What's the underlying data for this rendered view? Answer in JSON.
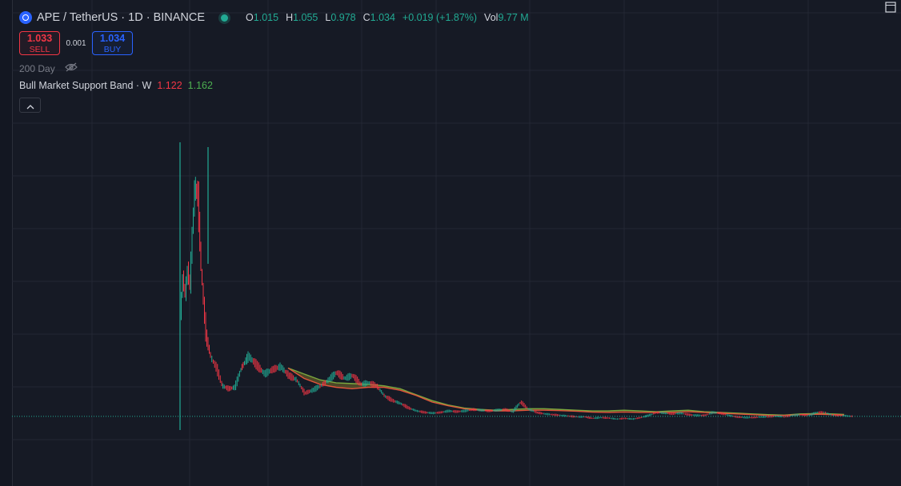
{
  "header": {
    "title": "APE / TetherUS · 1D · BINANCE",
    "ohlc": [
      {
        "key": "O",
        "value": "1.015"
      },
      {
        "key": "H",
        "value": "1.055"
      },
      {
        "key": "L",
        "value": "0.978"
      },
      {
        "key": "C",
        "value": "1.034"
      },
      {
        "key": "",
        "value": "+0.019 (+1.87%)"
      },
      {
        "key": "Vol",
        "value": "9.77 M"
      }
    ]
  },
  "trade": {
    "sell_price": "1.033",
    "sell_label": "SELL",
    "spread": "0.001",
    "buy_price": "1.034",
    "buy_label": "BUY"
  },
  "indicators": {
    "ma_label": "200 Day",
    "band_name": "Bull Market Support Band · W",
    "band_value_1": "1.122",
    "band_value_2": "1.162"
  },
  "colors": {
    "background": "#161a25",
    "up": "#22ab94",
    "down": "#f23645",
    "grid": "#232734",
    "band_red": "#e0553c",
    "band_green": "#7aa83e",
    "band_fill": "#7a6d2a"
  },
  "chart_data": {
    "type": "candlestick",
    "symbol": "APE / TetherUS",
    "interval": "1D",
    "exchange": "BINANCE",
    "x": [
      0,
      3,
      6,
      9,
      12,
      15,
      18,
      22,
      26,
      32,
      38,
      45,
      52,
      60,
      68,
      76,
      85,
      95,
      105,
      115,
      125,
      135,
      145,
      155,
      165,
      175,
      185,
      195,
      205,
      215,
      225,
      235,
      245,
      255,
      265,
      275,
      285,
      295,
      305,
      315,
      325,
      335,
      345,
      355,
      365,
      375,
      385,
      395,
      405,
      415,
      425,
      435,
      445,
      455,
      465,
      475,
      485,
      495,
      505,
      515,
      525,
      535,
      545,
      555,
      565,
      575,
      585,
      595,
      605,
      615,
      625,
      635,
      645,
      655,
      665,
      675,
      685,
      695,
      705,
      715,
      725,
      735,
      745,
      755,
      765,
      775,
      785,
      795,
      805,
      815,
      825,
      835,
      840
    ],
    "close": [
      7.8,
      10.5,
      9.2,
      11.0,
      9.8,
      13.5,
      16.5,
      16.0,
      11.0,
      6.5,
      5.0,
      4.3,
      3.1,
      2.9,
      3.0,
      4.3,
      5.1,
      4.5,
      3.9,
      4.2,
      4.4,
      3.8,
      3.5,
      2.6,
      2.8,
      3.1,
      3.5,
      4.0,
      3.6,
      3.8,
      3.2,
      3.3,
      3.1,
      2.4,
      2.1,
      1.9,
      1.6,
      1.4,
      1.3,
      1.25,
      1.3,
      1.4,
      1.35,
      1.4,
      1.5,
      1.45,
      1.4,
      1.45,
      1.5,
      1.35,
      2.0,
      1.5,
      1.3,
      1.2,
      1.15,
      1.1,
      1.05,
      1.0,
      1.0,
      0.9,
      0.95,
      0.92,
      0.85,
      0.9,
      0.85,
      0.95,
      1.1,
      1.3,
      1.25,
      1.2,
      1.25,
      1.15,
      1.1,
      1.1,
      1.3,
      1.25,
      1.1,
      1.0,
      0.95,
      0.95,
      1.0,
      1.0,
      1.05,
      1.0,
      1.1,
      1.15,
      1.1,
      1.3,
      1.3,
      1.1,
      1.1,
      1.05,
      1.034
    ],
    "band_x": [
      135,
      155,
      175,
      195,
      215,
      235,
      255,
      275,
      295,
      315,
      335,
      355,
      375,
      395,
      415,
      435,
      455,
      475,
      495,
      515,
      535,
      555,
      575,
      595,
      615,
      635,
      655,
      675,
      695,
      715,
      735,
      755,
      775,
      795,
      815,
      830
    ],
    "band_upper": [
      4.3,
      3.9,
      3.5,
      3.3,
      3.25,
      3.2,
      3.1,
      2.9,
      2.5,
      2.1,
      1.8,
      1.6,
      1.5,
      1.45,
      1.5,
      1.55,
      1.55,
      1.5,
      1.45,
      1.4,
      1.4,
      1.45,
      1.4,
      1.35,
      1.4,
      1.45,
      1.35,
      1.3,
      1.25,
      1.2,
      1.15,
      1.12,
      1.2,
      1.22,
      1.2,
      1.162
    ],
    "band_lower": [
      4.3,
      3.6,
      3.2,
      3.0,
      2.9,
      3.0,
      3.0,
      2.8,
      2.45,
      2.0,
      1.75,
      1.55,
      1.45,
      1.4,
      1.4,
      1.45,
      1.45,
      1.42,
      1.38,
      1.32,
      1.3,
      1.33,
      1.3,
      1.3,
      1.3,
      1.35,
      1.3,
      1.25,
      1.2,
      1.15,
      1.1,
      1.1,
      1.15,
      1.18,
      1.15,
      1.122
    ],
    "ylim": [
      0,
      20
    ],
    "grid": true,
    "last_price": 1.034
  }
}
